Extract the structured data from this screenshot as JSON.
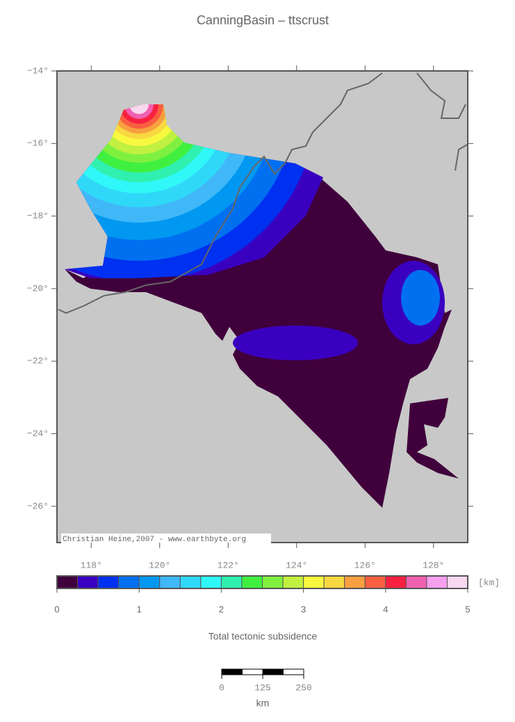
{
  "title": "CanningBasin – ttscrust",
  "map": {
    "xlim": [
      117,
      129
    ],
    "ylim": [
      -27,
      -14
    ],
    "xticks": [
      {
        "value": 118,
        "label": "118°"
      },
      {
        "value": 120,
        "label": "120°"
      },
      {
        "value": 122,
        "label": "122°"
      },
      {
        "value": 124,
        "label": "124°"
      },
      {
        "value": 126,
        "label": "126°"
      },
      {
        "value": 128,
        "label": "128°"
      }
    ],
    "yticks": [
      {
        "value": -14,
        "label": "−14°"
      },
      {
        "value": -16,
        "label": "−16°"
      },
      {
        "value": -18,
        "label": "−18°"
      },
      {
        "value": -20,
        "label": "−20°"
      },
      {
        "value": -22,
        "label": "−22°"
      },
      {
        "value": -24,
        "label": "−24°"
      },
      {
        "value": -26,
        "label": "−26°"
      }
    ],
    "credit": "Christian Heine,2007 - www.earthbyte.org"
  },
  "colorbar": {
    "lim": [
      0,
      5
    ],
    "ticks": [
      0,
      1,
      2,
      3,
      4,
      5
    ],
    "unit": "[km]",
    "label": "Total tectonic subsidence",
    "colors": [
      "#40003c",
      "#3a00c0",
      "#0030f0",
      "#0070f0",
      "#0098f0",
      "#40b8f8",
      "#30d8f8",
      "#30f8f8",
      "#30f0b0",
      "#40f040",
      "#80f040",
      "#c0f040",
      "#f8f840",
      "#f8d840",
      "#f8a040",
      "#f86040",
      "#f82040",
      "#f060b0",
      "#f8a0f0",
      "#f8d8f0"
    ]
  },
  "scalebar": {
    "lim": [
      0,
      250
    ],
    "ticks": [
      0,
      125,
      250
    ],
    "unit": "km"
  }
}
